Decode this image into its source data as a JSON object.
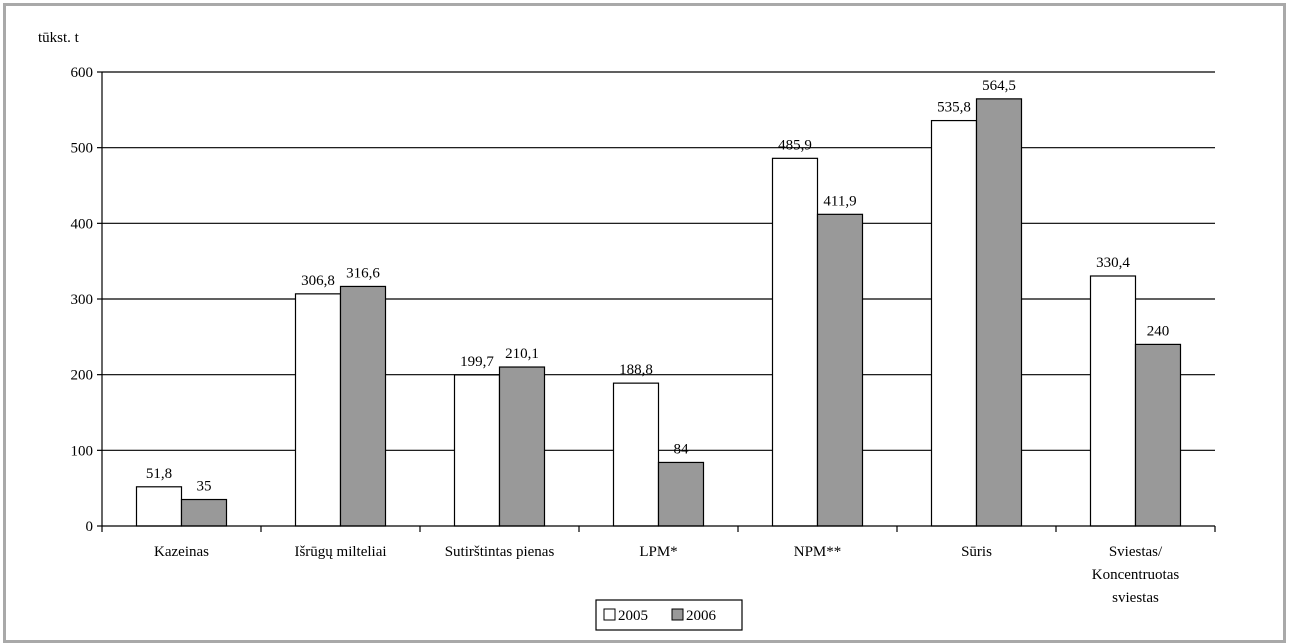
{
  "chart_data": {
    "type": "bar",
    "unit_label": "tūkst. t",
    "categories": [
      [
        "Kazeinas"
      ],
      [
        "Išrūgų milteliai"
      ],
      [
        "Sutirštintas pienas"
      ],
      [
        "LPM*"
      ],
      [
        "NPM**"
      ],
      [
        "Sūris"
      ],
      [
        "Sviestas/",
        "Koncentruotas",
        "sviestas"
      ]
    ],
    "series": [
      {
        "name": "2005",
        "color": "#ffffff",
        "values": [
          51.8,
          306.8,
          199.7,
          188.8,
          485.9,
          535.8,
          330.4
        ],
        "labels": [
          "51,8",
          "306,8",
          "199,7",
          "188,8",
          "485,9",
          "535,8",
          "330,4"
        ]
      },
      {
        "name": "2006",
        "color": "#999999",
        "values": [
          35,
          316.6,
          210.1,
          84,
          411.9,
          564.5,
          240
        ],
        "labels": [
          "35",
          "316,6",
          "210,1",
          "84",
          "411,9",
          "564,5",
          "240"
        ]
      }
    ],
    "yticks": [
      0,
      100,
      200,
      300,
      400,
      500,
      600
    ],
    "ylim": [
      0,
      600
    ],
    "grid": true,
    "legend_position": "bottom-center"
  }
}
